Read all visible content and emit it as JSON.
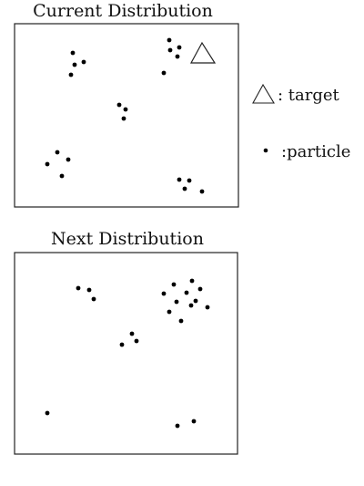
{
  "panels": [
    {
      "title": "Current Distribution",
      "particles": [
        [
          80,
          58
        ],
        [
          82,
          71
        ],
        [
          92,
          68
        ],
        [
          78,
          82
        ],
        [
          186,
          44
        ],
        [
          197,
          52
        ],
        [
          187,
          55
        ],
        [
          195,
          62
        ],
        [
          180,
          80
        ],
        [
          131,
          115
        ],
        [
          138,
          120
        ],
        [
          136,
          130
        ],
        [
          63,
          167
        ],
        [
          75,
          175
        ],
        [
          52,
          180
        ],
        [
          68,
          193
        ],
        [
          197,
          197
        ],
        [
          208,
          198
        ],
        [
          203,
          207
        ],
        [
          222,
          210
        ]
      ],
      "target": {
        "present": true
      }
    },
    {
      "title": "Next Distribution",
      "particles": [
        [
          86,
          316
        ],
        [
          98,
          318
        ],
        [
          103,
          328
        ],
        [
          191,
          312
        ],
        [
          211,
          308
        ],
        [
          180,
          322
        ],
        [
          205,
          321
        ],
        [
          220,
          317
        ],
        [
          194,
          331
        ],
        [
          215,
          330
        ],
        [
          228,
          337
        ],
        [
          186,
          342
        ],
        [
          210,
          335
        ],
        [
          199,
          352
        ],
        [
          145,
          366
        ],
        [
          150,
          374
        ],
        [
          134,
          378
        ],
        [
          52,
          453
        ],
        [
          213,
          462
        ],
        [
          195,
          467
        ]
      ],
      "target": {
        "present": false
      }
    }
  ],
  "legend": {
    "target_label": ": target",
    "particle_label": ":particle"
  }
}
